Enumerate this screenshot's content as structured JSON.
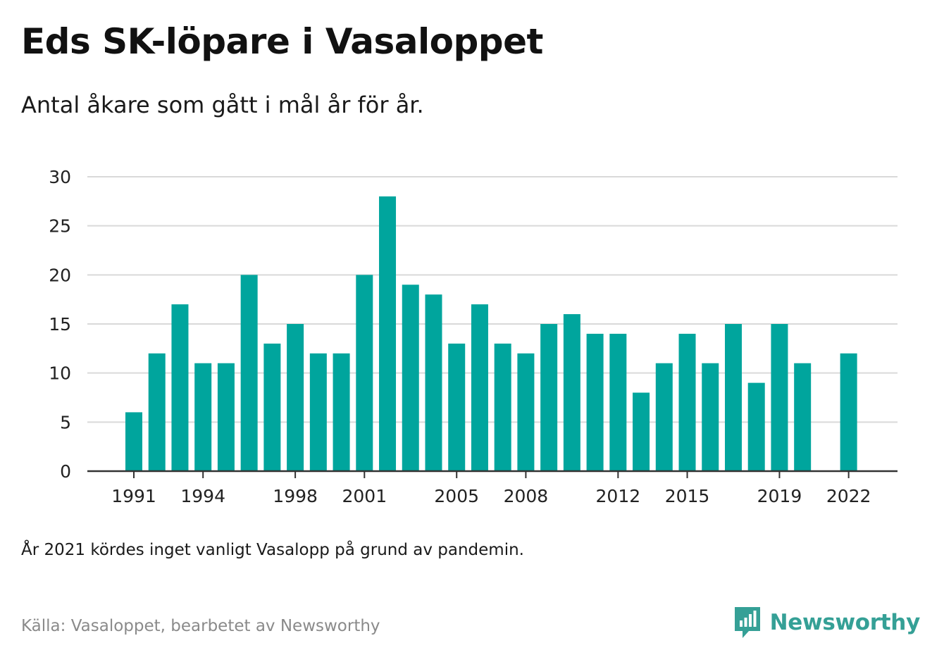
{
  "header": {
    "title": "Eds SK-löpare i Vasaloppet",
    "subtitle": "Antal åkare som gått i mål år för år."
  },
  "footer": {
    "note": "År 2021 kördes inget vanligt Vasalopp på grund av pandemin.",
    "source": "Källa: Vasaloppet, bearbetet av Newsworthy",
    "brand": "Newsworthy",
    "brand_icon": "newsworthy-logo-icon"
  },
  "colors": {
    "bar": "#00a59d",
    "grid": "#d9d9d9",
    "axis": "#333333",
    "brand": "#35a096"
  },
  "chart_data": {
    "type": "bar",
    "title": "Eds SK-löpare i Vasaloppet",
    "subtitle": "Antal åkare som gått i mål år för år.",
    "xlabel": "",
    "ylabel": "",
    "ylim": [
      0,
      30
    ],
    "yticks": [
      0,
      5,
      10,
      15,
      20,
      25,
      30
    ],
    "xticks": [
      1991,
      1994,
      1998,
      2001,
      2005,
      2008,
      2012,
      2015,
      2019,
      2022
    ],
    "grid": true,
    "legend": "none",
    "categories": [
      1991,
      1992,
      1993,
      1994,
      1995,
      1996,
      1997,
      1998,
      1999,
      2000,
      2001,
      2002,
      2003,
      2004,
      2005,
      2006,
      2007,
      2008,
      2009,
      2010,
      2011,
      2012,
      2013,
      2014,
      2015,
      2016,
      2017,
      2018,
      2019,
      2020,
      2021,
      2022
    ],
    "values": [
      6,
      12,
      17,
      11,
      11,
      20,
      13,
      15,
      12,
      12,
      20,
      28,
      19,
      18,
      13,
      17,
      13,
      12,
      15,
      16,
      14,
      14,
      8,
      11,
      14,
      11,
      15,
      9,
      15,
      11,
      null,
      12
    ]
  }
}
